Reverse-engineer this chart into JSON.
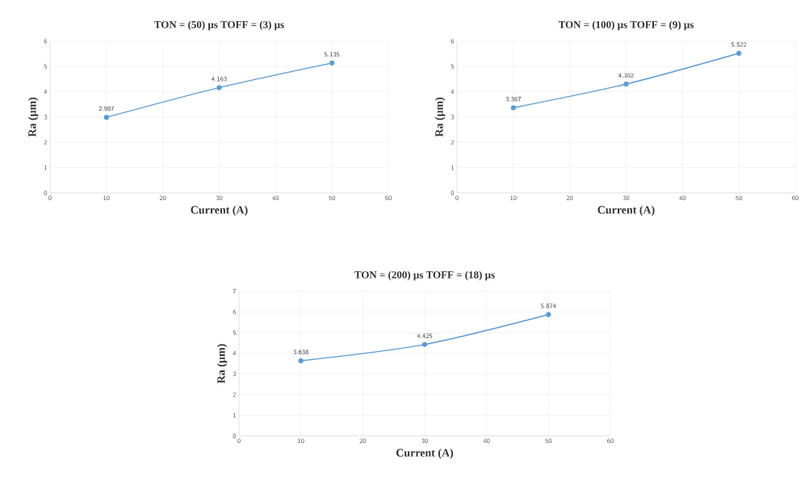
{
  "chart_data": [
    {
      "type": "line",
      "title": "TON = (50) µs   TOFF = (3) µs",
      "xlabel": "Current (A)",
      "ylabel": "Ra (µm)",
      "x": [
        10,
        30,
        50
      ],
      "series": [
        {
          "color": "#5b9bd5",
          "values": [
            2.987,
            4.163,
            5.135
          ]
        }
      ],
      "xlim": [
        0,
        60
      ],
      "xticks": [
        0,
        10,
        20,
        30,
        40,
        50,
        60
      ],
      "ylim": [
        0,
        6
      ],
      "yticks": [
        0,
        1,
        2,
        3,
        4,
        5,
        6
      ],
      "grid": true,
      "data_labels": true,
      "marker": "circle"
    },
    {
      "type": "line",
      "title": "TON = (100) µs   TOFF = (9) µs",
      "xlabel": "Current (A)",
      "ylabel": "Ra (µm)",
      "x": [
        10,
        30,
        50
      ],
      "series": [
        {
          "color": "#5b9bd5",
          "values": [
            3.367,
            4.302,
            5.522
          ]
        }
      ],
      "xlim": [
        0,
        60
      ],
      "xticks": [
        0,
        10,
        20,
        30,
        40,
        50,
        60
      ],
      "ylim": [
        0,
        6
      ],
      "yticks": [
        0,
        1,
        2,
        3,
        4,
        5,
        6
      ],
      "grid": true,
      "data_labels": true,
      "marker": "circle"
    },
    {
      "type": "line",
      "title": "TON = (200) µs      TOFF = (18) µs",
      "xlabel": "Current (A)",
      "ylabel": "Ra (µm)",
      "x": [
        10,
        30,
        50
      ],
      "series": [
        {
          "color": "#5b9bd5",
          "values": [
            3.638,
            4.425,
            5.874
          ]
        }
      ],
      "xlim": [
        0,
        60
      ],
      "xticks": [
        0,
        10,
        20,
        30,
        40,
        50,
        60
      ],
      "ylim": [
        0,
        7
      ],
      "yticks": [
        0,
        1,
        2,
        3,
        4,
        5,
        6,
        7
      ],
      "grid": true,
      "data_labels": true,
      "marker": "circle"
    }
  ]
}
